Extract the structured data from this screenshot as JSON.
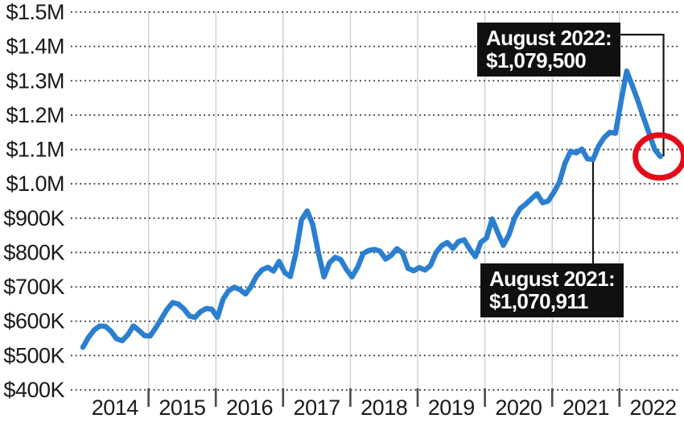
{
  "chart_data": {
    "type": "line",
    "title": "",
    "x_axis": {
      "tick_labels": [
        "2014",
        "2015",
        "2016",
        "2017",
        "2018",
        "2019",
        "2020",
        "2021",
        "2022"
      ]
    },
    "y_axis": {
      "tick_labels": [
        "$400K",
        "$500K",
        "$600K",
        "$700K",
        "$800K",
        "$900K",
        "$1.0M",
        "$1.1M",
        "$1.2M",
        "$1.3M",
        "$1.4M",
        "$1.5M"
      ],
      "min": 400,
      "max": 1500,
      "step": 100,
      "unit": "thousand USD"
    },
    "grid": {
      "horizontal": "dotted",
      "vertical": "solid-light"
    },
    "series": [
      {
        "start": "2014-01",
        "frequency": "monthly",
        "end": "2022-08",
        "unit": "thousand USD",
        "color": "#2b7fd0",
        "values": [
          524,
          553,
          574,
          586,
          585,
          571,
          549,
          543,
          560,
          586,
          573,
          558,
          557,
          581,
          607,
          634,
          654,
          650,
          636,
          615,
          611,
          628,
          637,
          635,
          611,
          664,
          689,
          699,
          692,
          679,
          701,
          732,
          750,
          757,
          746,
          774,
          742,
          730,
          798,
          895,
          921,
          882,
          800,
          729,
          770,
          786,
          779,
          751,
          729,
          757,
          797,
          806,
          809,
          804,
          781,
          792,
          811,
          799,
          754,
          747,
          756,
          749,
          762,
          800,
          820,
          829,
          812,
          832,
          837,
          810,
          788,
          830,
          842,
          898,
          858,
          821,
          852,
          900,
          928,
          941,
          956,
          971,
          945,
          950,
          975,
          1005,
          1060,
          1095,
          1090,
          1101,
          1073,
          1070.911,
          1110,
          1135,
          1150,
          1147,
          1240,
          1328,
          1286,
          1242,
          1193,
          1147,
          1100,
          1079.5
        ]
      }
    ],
    "annotations": [
      {
        "label_line1": "August 2022:",
        "label_line2": "$1,079,500",
        "month": "2022-08",
        "value": 1079500,
        "point_index": 103
      },
      {
        "label_line1": "August 2021:",
        "label_line2": "$1,070,911",
        "month": "2021-08",
        "value": 1070911,
        "point_index": 91
      }
    ],
    "highlight": {
      "type": "circle",
      "on_point_index": 103,
      "color": "#e60a18"
    },
    "style": {
      "line_color": "#2b7fd0",
      "highlight_color": "#e60a18",
      "dotted_grid_color": "#2b2b2b",
      "vertical_grid_color": "#c9d1d8",
      "tick_color": "#4b4b4b",
      "label_color": "#191919",
      "connector_color": "#161616",
      "annotation_bg": "#101010",
      "annotation_text": "#ffffff"
    }
  }
}
